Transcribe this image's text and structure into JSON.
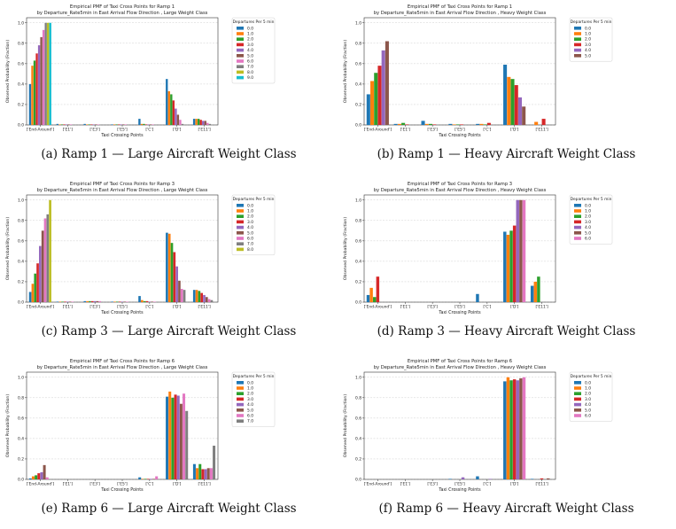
{
  "colors": [
    "#1f77b4",
    "#ff7f0e",
    "#2ca02c",
    "#d62728",
    "#9467bd",
    "#8c564b",
    "#e377c2",
    "#7f7f7f",
    "#bcbd22",
    "#17becf"
  ],
  "chart_data": [
    {
      "type": "bar",
      "title": "Empirical PMF of Taxi Cross Points for Ramp 1",
      "subtitle": "by Departure_Rate5min in East Arrival Flow Direction , Large Weight Class",
      "xlabel": "Taxi Crossing Points",
      "ylabel": "Observed Probability (Fraction)",
      "ylim": [
        0,
        1.05
      ],
      "yticks": [
        "0.0",
        "0.2",
        "0.4",
        "0.6",
        "0.8",
        "1.0"
      ],
      "grid": true,
      "legend_title": "Departures Per 5 min",
      "legend_position": "outside-right",
      "categories": [
        "['End-Around']",
        "['E1']",
        "['E3']",
        "['E5']",
        "['C']",
        "['D']",
        "['E11']"
      ],
      "caption": "(a) Ramp 1 — Large Aircraft Weight Class",
      "series": [
        {
          "name": "0.0",
          "values": [
            0.4,
            0.01,
            0.01,
            0.005,
            0.06,
            0.45,
            0.06
          ]
        },
        {
          "name": "1.0",
          "values": [
            0.58,
            0.005,
            0.005,
            0.005,
            0.01,
            0.33,
            0.06
          ]
        },
        {
          "name": "2.0",
          "values": [
            0.63,
            0.005,
            0.005,
            0.005,
            0.01,
            0.3,
            0.06
          ]
        },
        {
          "name": "3.0",
          "values": [
            0.7,
            0.005,
            0.005,
            0.005,
            0.005,
            0.24,
            0.05
          ]
        },
        {
          "name": "4.0",
          "values": [
            0.78,
            0.005,
            0.005,
            0.005,
            0.005,
            0.16,
            0.04
          ]
        },
        {
          "name": "5.0",
          "values": [
            0.86,
            0.005,
            0.005,
            0.005,
            0.005,
            0.1,
            0.04
          ]
        },
        {
          "name": "6.0",
          "values": [
            0.93,
            0.005,
            0.005,
            0.005,
            0.005,
            0.05,
            0.02
          ]
        },
        {
          "name": "7.0",
          "values": [
            1.0,
            0,
            0,
            0,
            0,
            0.01,
            0.01
          ]
        },
        {
          "name": "8.0",
          "values": [
            1.0,
            0,
            0,
            0,
            0,
            0,
            0
          ]
        },
        {
          "name": "9.0",
          "values": [
            1.0,
            0,
            0,
            0,
            0,
            0,
            0
          ]
        }
      ]
    },
    {
      "type": "bar",
      "title": "Empirical PMF of Taxi Cross Points for Ramp 1",
      "subtitle": "by Departure_Rate5min in East Arrival Flow Direction , Heavy Weight Class",
      "xlabel": "Taxi Crossing Points",
      "ylabel": "Observed Probability (Fraction)",
      "ylim": [
        0,
        1.05
      ],
      "yticks": [
        "0.0",
        "0.2",
        "0.4",
        "0.6",
        "0.8",
        "1.0"
      ],
      "grid": true,
      "legend_title": "Departures Per 5 min",
      "legend_position": "outside-right",
      "categories": [
        "['End-Around']",
        "['E1']",
        "['E3']",
        "['E5']",
        "['C']",
        "['D']",
        "['E11']"
      ],
      "caption": "(b) Ramp 1 — Heavy Aircraft Weight Class",
      "series": [
        {
          "name": "0.0",
          "values": [
            0.3,
            0.01,
            0.04,
            0.01,
            0.01,
            0.59,
            0.0
          ]
        },
        {
          "name": "1.0",
          "values": [
            0.43,
            0.01,
            0.01,
            0.005,
            0.01,
            0.47,
            0.03
          ]
        },
        {
          "name": "2.0",
          "values": [
            0.51,
            0.02,
            0.01,
            0.005,
            0.005,
            0.45,
            0.0
          ]
        },
        {
          "name": "3.0",
          "values": [
            0.58,
            0.005,
            0.005,
            0.005,
            0.02,
            0.39,
            0.06
          ]
        },
        {
          "name": "4.0",
          "values": [
            0.73,
            0,
            0,
            0,
            0,
            0.27,
            0.0
          ]
        },
        {
          "name": "5.0",
          "values": [
            0.82,
            0,
            0,
            0,
            0,
            0.18,
            0.0
          ]
        }
      ]
    },
    {
      "type": "bar",
      "title": "Empirical PMF of Taxi Cross Points for Ramp 3",
      "subtitle": "by Departure_Rate5min in East Arrival Flow Direction , Large Weight Class",
      "xlabel": "Taxi Crossing Points",
      "ylabel": "Observed Probability (Fraction)",
      "ylim": [
        0,
        1.05
      ],
      "yticks": [
        "0.0",
        "0.2",
        "0.4",
        "0.6",
        "0.8",
        "1.0"
      ],
      "grid": true,
      "legend_title": "Departures Per 5 min",
      "legend_position": "outside-right",
      "categories": [
        "['End-Around']",
        "['E1']",
        "['E3']",
        "['E5']",
        "['C']",
        "['D']",
        "['E11']"
      ],
      "caption": "(c) Ramp 3 — Large Aircraft Weight Class",
      "series": [
        {
          "name": "0.0",
          "values": [
            0.1,
            0.005,
            0.01,
            0.005,
            0.06,
            0.68,
            0.12
          ]
        },
        {
          "name": "1.0",
          "values": [
            0.18,
            0.005,
            0.01,
            0.005,
            0.02,
            0.67,
            0.12
          ]
        },
        {
          "name": "2.0",
          "values": [
            0.28,
            0.005,
            0.01,
            0.005,
            0.01,
            0.58,
            0.11
          ]
        },
        {
          "name": "3.0",
          "values": [
            0.38,
            0.005,
            0.01,
            0.005,
            0.01,
            0.49,
            0.09
          ]
        },
        {
          "name": "4.0",
          "values": [
            0.55,
            0.005,
            0.01,
            0.005,
            0.005,
            0.35,
            0.07
          ]
        },
        {
          "name": "5.0",
          "values": [
            0.7,
            0.005,
            0.01,
            0.005,
            0.005,
            0.21,
            0.05
          ]
        },
        {
          "name": "6.0",
          "values": [
            0.82,
            0.005,
            0.01,
            0.005,
            0.005,
            0.13,
            0.03
          ]
        },
        {
          "name": "7.0",
          "values": [
            0.86,
            0,
            0,
            0,
            0,
            0.12,
            0.02
          ]
        },
        {
          "name": "8.0",
          "values": [
            1.0,
            0,
            0,
            0,
            0,
            0,
            0
          ]
        }
      ]
    },
    {
      "type": "bar",
      "title": "Empirical PMF of Taxi Cross Points for Ramp 3",
      "subtitle": "by Departure_Rate5min in East Arrival Flow Direction , Heavy Weight Class",
      "xlabel": "Taxi Crossing Points",
      "ylabel": "Observed Probability (Fraction)",
      "ylim": [
        0,
        1.05
      ],
      "yticks": [
        "0.0",
        "0.2",
        "0.4",
        "0.6",
        "0.8",
        "1.0"
      ],
      "grid": true,
      "legend_title": "Departures Per 5 min",
      "legend_position": "outside-right",
      "categories": [
        "['End-Around']",
        "['E1']",
        "['E3']",
        "['E5']",
        "['C']",
        "['D']",
        "['E11']"
      ],
      "caption": "(d) Ramp 3 — Heavy Aircraft Weight Class",
      "series": [
        {
          "name": "0.0",
          "values": [
            0.07,
            0,
            0,
            0,
            0.08,
            0.69,
            0.16
          ]
        },
        {
          "name": "1.0",
          "values": [
            0.14,
            0,
            0,
            0,
            0,
            0.66,
            0.2
          ]
        },
        {
          "name": "2.0",
          "values": [
            0.05,
            0,
            0,
            0,
            0,
            0.7,
            0.25
          ]
        },
        {
          "name": "3.0",
          "values": [
            0.25,
            0,
            0,
            0,
            0,
            0.75,
            0.0
          ]
        },
        {
          "name": "4.0",
          "values": [
            0,
            0,
            0,
            0,
            0,
            1.0,
            0
          ]
        },
        {
          "name": "5.0",
          "values": [
            0,
            0,
            0,
            0,
            0,
            1.0,
            0
          ]
        },
        {
          "name": "6.0",
          "values": [
            0,
            0,
            0,
            0,
            0,
            1.0,
            0
          ]
        }
      ]
    },
    {
      "type": "bar",
      "title": "Empirical PMF of Taxi Cross Points for Ramp 6",
      "subtitle": "by Departure_Rate5min in East Arrival Flow Direction , Large Weight Class",
      "xlabel": "Taxi Crossing Points",
      "ylabel": "Observed Probability (Fraction)",
      "ylim": [
        0,
        1.05
      ],
      "yticks": [
        "0.0",
        "0.2",
        "0.4",
        "0.6",
        "0.8",
        "1.0"
      ],
      "grid": true,
      "legend_title": "Departures Per 5 min",
      "legend_position": "outside-right",
      "categories": [
        "['End-Around']",
        "['E1']",
        "['E3']",
        "['E5']",
        "['C']",
        "['D']",
        "['E11']"
      ],
      "caption": "(e) Ramp 6 — Large Aircraft Weight Class",
      "series": [
        {
          "name": "0.0",
          "values": [
            0.01,
            0,
            0,
            0,
            0.02,
            0.81,
            0.15
          ]
        },
        {
          "name": "1.0",
          "values": [
            0.03,
            0,
            0,
            0,
            0.005,
            0.86,
            0.11
          ]
        },
        {
          "name": "2.0",
          "values": [
            0.04,
            0,
            0,
            0,
            0.005,
            0.8,
            0.15
          ]
        },
        {
          "name": "3.0",
          "values": [
            0.06,
            0,
            0,
            0,
            0.005,
            0.83,
            0.1
          ]
        },
        {
          "name": "4.0",
          "values": [
            0.07,
            0,
            0,
            0,
            0.005,
            0.82,
            0.1
          ]
        },
        {
          "name": "5.0",
          "values": [
            0.14,
            0,
            0,
            0,
            0.005,
            0.74,
            0.11
          ]
        },
        {
          "name": "6.0",
          "values": [
            0.02,
            0,
            0,
            0,
            0.03,
            0.84,
            0.11
          ]
        },
        {
          "name": "7.0",
          "values": [
            0,
            0,
            0,
            0,
            0,
            0.67,
            0.33
          ]
        }
      ]
    },
    {
      "type": "bar",
      "title": "Empirical PMF of Taxi Cross Points for Ramp 6",
      "subtitle": "by Departure_Rate5min in East Arrival Flow Direction , Heavy Weight Class",
      "xlabel": "Taxi Crossing Points",
      "ylabel": "Observed Probability (Fraction)",
      "ylim": [
        0,
        1.05
      ],
      "yticks": [
        "0.0",
        "0.2",
        "0.4",
        "0.6",
        "0.8",
        "1.0"
      ],
      "grid": true,
      "legend_title": "Departures Per 5 min",
      "legend_position": "outside-right",
      "categories": [
        "['End-Around']",
        "['E1']",
        "['E3']",
        "['E5']",
        "['C']",
        "['D']",
        "['E11']"
      ],
      "caption": "(f) Ramp 6 — Heavy Aircraft Weight Class",
      "series": [
        {
          "name": "0.0",
          "values": [
            0,
            0,
            0,
            0.005,
            0.03,
            0.96,
            0.005
          ]
        },
        {
          "name": "1.0",
          "values": [
            0,
            0,
            0,
            0,
            0,
            1.0,
            0
          ]
        },
        {
          "name": "2.0",
          "values": [
            0,
            0,
            0,
            0,
            0,
            0.97,
            0
          ]
        },
        {
          "name": "3.0",
          "values": [
            0,
            0,
            0,
            0,
            0,
            0.98,
            0.01
          ]
        },
        {
          "name": "4.0",
          "values": [
            0,
            0,
            0,
            0.02,
            0.005,
            0.97,
            0
          ]
        },
        {
          "name": "5.0",
          "values": [
            0,
            0,
            0,
            0,
            0,
            0.99,
            0.01
          ]
        },
        {
          "name": "6.0",
          "values": [
            0,
            0,
            0,
            0,
            0,
            1.0,
            0
          ]
        }
      ]
    }
  ]
}
